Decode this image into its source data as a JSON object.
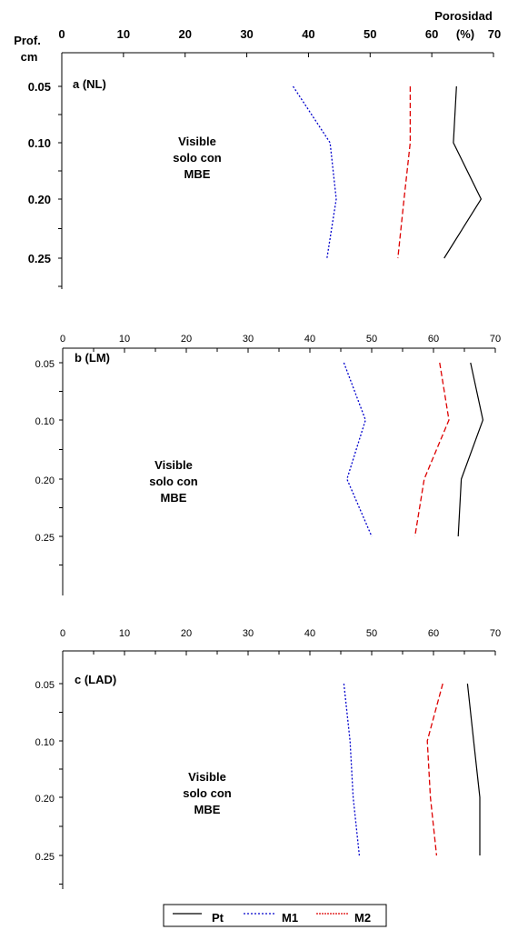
{
  "chart_data": [
    {
      "type": "line",
      "panel": "a (NL)",
      "orientation": "x-value-y-depth",
      "title": "",
      "xlabel": "Porosidad (%)",
      "ylabel": "Prof. cm",
      "xlabel_parts": [
        "Porosidad",
        "(%)"
      ],
      "ylabel_parts": [
        "Prof.",
        "cm"
      ],
      "xlim": [
        0,
        70
      ],
      "xticks": [
        0,
        10,
        20,
        30,
        40,
        50,
        60,
        70
      ],
      "categories": [
        "0.05",
        "0.10",
        "0.20",
        "0.25"
      ],
      "annotation": [
        "Visible",
        "solo con",
        "MBE"
      ],
      "series": [
        {
          "name": "Pt",
          "values": [
            64,
            63.5,
            68,
            62
          ],
          "color": "#000000",
          "style": "solid"
        },
        {
          "name": "M1",
          "values": [
            37.5,
            43.5,
            44.5,
            43
          ],
          "color": "#0000cc",
          "style": "dotted"
        },
        {
          "name": "M2",
          "values": [
            56.5,
            56.5,
            55.5,
            54.5
          ],
          "color": "#dd0000",
          "style": "dashed"
        }
      ]
    },
    {
      "type": "line",
      "panel": "b (LM)",
      "orientation": "x-value-y-depth",
      "xlim": [
        0,
        70
      ],
      "xticks": [
        0,
        10,
        20,
        30,
        40,
        50,
        60,
        70
      ],
      "categories": [
        "0.05",
        "0.10",
        "0.20",
        "0.25"
      ],
      "annotation": [
        "Visible",
        "solo con",
        "MBE"
      ],
      "series": [
        {
          "name": "Pt",
          "values": [
            66,
            68,
            64.5,
            64
          ],
          "color": "#000000",
          "style": "solid"
        },
        {
          "name": "M1",
          "values": [
            45.5,
            49,
            46,
            50
          ],
          "color": "#0000cc",
          "style": "dotted"
        },
        {
          "name": "M2",
          "values": [
            61,
            62.5,
            58.5,
            57
          ],
          "color": "#dd0000",
          "style": "dashed"
        }
      ]
    },
    {
      "type": "line",
      "panel": "c (LAD)",
      "orientation": "x-value-y-depth",
      "xlim": [
        0,
        70
      ],
      "xticks": [
        0,
        10,
        20,
        30,
        40,
        50,
        60,
        70
      ],
      "categories": [
        "0.05",
        "0.10",
        "0.20",
        "0.25"
      ],
      "annotation": [
        "Visible",
        "solo con",
        "MBE"
      ],
      "series": [
        {
          "name": "Pt",
          "values": [
            65.5,
            66.5,
            67.5,
            67.5
          ],
          "color": "#000000",
          "style": "solid"
        },
        {
          "name": "M1",
          "values": [
            45.5,
            46.5,
            47,
            48
          ],
          "color": "#0000cc",
          "style": "dotted"
        },
        {
          "name": "M2",
          "values": [
            61.5,
            59,
            59.5,
            60.5
          ],
          "color": "#dd0000",
          "style": "dashed"
        }
      ]
    }
  ],
  "legend": {
    "position": "bottom-center",
    "items": [
      {
        "name": "Pt",
        "color": "#000000",
        "style": "solid"
      },
      {
        "name": "M1",
        "color": "#0000cc",
        "style": "dotted"
      },
      {
        "name": "M2",
        "color": "#dd0000",
        "style": "dashed"
      }
    ]
  }
}
